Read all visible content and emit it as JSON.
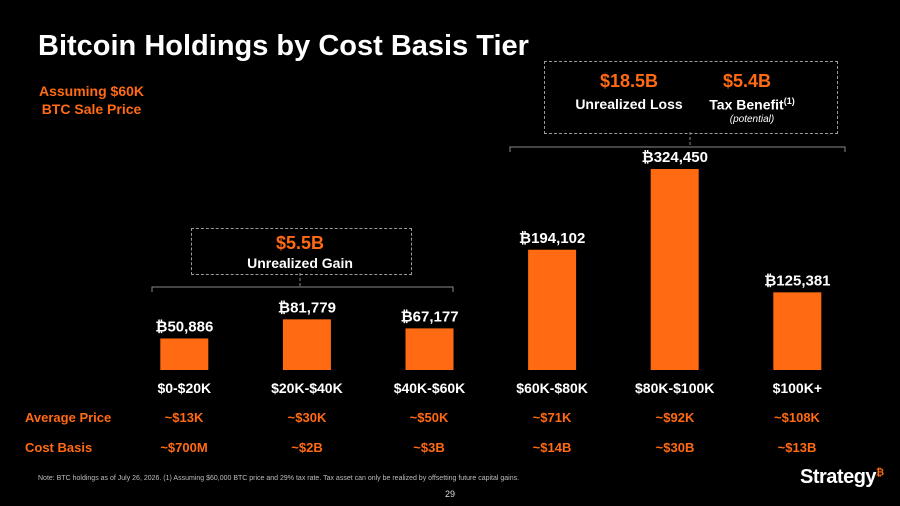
{
  "title": "Bitcoin Holdings by Cost Basis Tier",
  "assumption_line1": "Assuming $60K",
  "assumption_line2": "BTC Sale Price",
  "callouts": {
    "loss_value": "$18.5B",
    "loss_label": "Unrealized Loss",
    "tax_value": "$5.4B",
    "tax_label": "Tax Benefit",
    "tax_sup": "(1)",
    "tax_note": "(potential)",
    "gain_value": "$5.5B",
    "gain_label": "Unrealized Gain"
  },
  "chart_data": {
    "type": "bar",
    "categories": [
      "$0-$20K",
      "$20K-$40K",
      "$40K-$60K",
      "$60K-$80K",
      "$80K-$100K",
      "$100K+"
    ],
    "values": [
      50886,
      81779,
      67177,
      194102,
      324450,
      125381
    ],
    "data_labels": [
      "₿50,886",
      "₿81,779",
      "₿67,177",
      "₿194,102",
      "₿324,450",
      "₿125,381"
    ],
    "bar_color": "#ff6a13"
  },
  "table": {
    "rows": [
      {
        "label": "Average Price",
        "values": [
          "~$13K",
          "~$30K",
          "~$50K",
          "~$71K",
          "~$92K",
          "~$108K"
        ]
      },
      {
        "label": "Cost Basis",
        "values": [
          "~$700M",
          "~$2B",
          "~$3B",
          "~$14B",
          "~$30B",
          "~$13B"
        ]
      }
    ]
  },
  "footnote": "Note: BTC holdings as of July 26, 2026. (1) Assuming $60,000 BTC price and 29% tax rate. Tax asset can only be realized by offsetting future capital gains.",
  "page_number": "29",
  "logo_text": "Strategy",
  "logo_mark": "₿",
  "accent_color": "#ff6a13"
}
